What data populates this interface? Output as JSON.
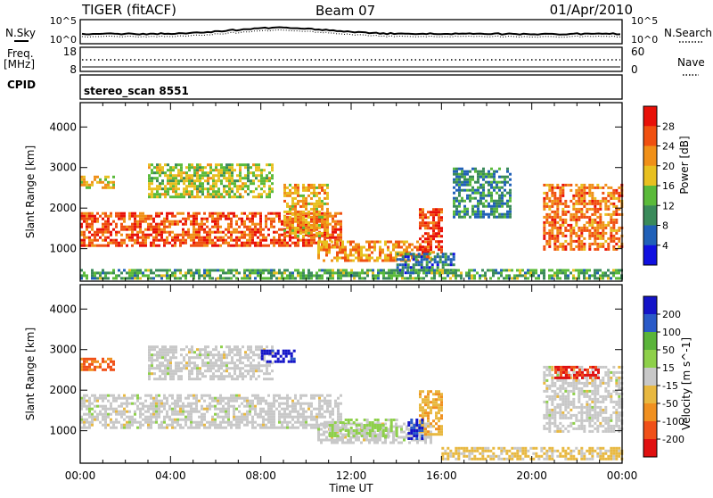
{
  "header": {
    "title": "TIGER (fitACF)",
    "beam": "Beam 07",
    "date": "01/Apr/2010"
  },
  "noise_panel": {
    "label": "N.Sky",
    "right_label": "N.Search",
    "ticks_left": [
      "10^5",
      "10^0"
    ],
    "ticks_right": [
      "10^5",
      "10^0"
    ]
  },
  "freq_panel": {
    "label_line1": "Freq.",
    "label_line2": "[MHz]",
    "right_label": "Nave",
    "ticks_left": [
      "18",
      "8"
    ],
    "ticks_right": [
      "60",
      "0"
    ]
  },
  "cpid_panel": {
    "label": "CPID",
    "text": "stereo_scan 8551"
  },
  "colors": {
    "power_scale": [
      "#1010e0",
      "#2060b8",
      "#3a8a5a",
      "#5aba3a",
      "#e8c020",
      "#f09018",
      "#f05010",
      "#e81008"
    ],
    "velocity_scale": [
      "#1414c8",
      "#2a5ac8",
      "#5ab43a",
      "#8ed04a",
      "#c8c8c8",
      "#e8b840",
      "#f09020",
      "#f05018",
      "#e01010"
    ]
  },
  "chart_data": [
    {
      "type": "heatmap",
      "title": "",
      "quantity": "Power",
      "xlabel": "",
      "ylabel": "Slant Range [km]",
      "x_tick_labels": [
        "00:00",
        "04:00",
        "08:00",
        "12:00",
        "16:00",
        "20:00",
        "00:00"
      ],
      "x_range_hours": [
        0,
        24
      ],
      "ylim": [
        200,
        4600
      ],
      "y_ticks": [
        1000,
        2000,
        3000,
        4000
      ],
      "colorbar_label": "Power [dB]",
      "colorbar_ticks": [
        "4",
        "8",
        "12",
        "16",
        "20",
        "24",
        "28"
      ],
      "colorbar_range": [
        0,
        32
      ],
      "echo_regions": [
        {
          "t_start": 0.0,
          "t_end": 11.5,
          "r_start": 1100,
          "r_end": 1900,
          "level": 26
        },
        {
          "t_start": 0.0,
          "t_end": 1.5,
          "r_start": 2500,
          "r_end": 2800,
          "level": 18
        },
        {
          "t_start": 3.0,
          "t_end": 8.5,
          "r_start": 2300,
          "r_end": 3100,
          "level": 16
        },
        {
          "t_start": 9.0,
          "t_end": 11.0,
          "r_start": 1300,
          "r_end": 2600,
          "level": 20
        },
        {
          "t_start": 10.5,
          "t_end": 15.5,
          "r_start": 700,
          "r_end": 1200,
          "level": 22
        },
        {
          "t_start": 15.0,
          "t_end": 16.0,
          "r_start": 900,
          "r_end": 2000,
          "level": 28
        },
        {
          "t_start": 14.0,
          "t_end": 16.5,
          "r_start": 400,
          "r_end": 900,
          "level": 8
        },
        {
          "t_start": 16.5,
          "t_end": 19.0,
          "r_start": 1800,
          "r_end": 3000,
          "level": 10
        },
        {
          "t_start": 20.5,
          "t_end": 24.0,
          "r_start": 1000,
          "r_end": 2600,
          "level": 24
        },
        {
          "t_start": 0.0,
          "t_end": 24.0,
          "r_start": 250,
          "r_end": 500,
          "level": 12
        }
      ]
    },
    {
      "type": "heatmap",
      "title": "",
      "quantity": "Velocity",
      "xlabel": "Time UT",
      "ylabel": "Slant Range [km]",
      "x_tick_labels": [
        "00:00",
        "04:00",
        "08:00",
        "12:00",
        "16:00",
        "20:00",
        "00:00"
      ],
      "x_range_hours": [
        0,
        24
      ],
      "ylim": [
        200,
        4600
      ],
      "y_ticks": [
        1000,
        2000,
        3000,
        4000
      ],
      "colorbar_label": "Velocity [m s^-1]",
      "colorbar_ticks": [
        "200",
        "100",
        "50",
        "15",
        "-15",
        "-50",
        "-100",
        "-200"
      ],
      "colorbar_range": [
        -250,
        250
      ],
      "echo_regions": [
        {
          "t_start": 0.0,
          "t_end": 11.5,
          "r_start": 1100,
          "r_end": 1900,
          "level": 0
        },
        {
          "t_start": 0.0,
          "t_end": 1.5,
          "r_start": 2500,
          "r_end": 2800,
          "level": -150
        },
        {
          "t_start": 3.0,
          "t_end": 8.5,
          "r_start": 2300,
          "r_end": 3100,
          "level": 0
        },
        {
          "t_start": 8.0,
          "t_end": 9.5,
          "r_start": 2700,
          "r_end": 3000,
          "level": 220
        },
        {
          "t_start": 10.5,
          "t_end": 15.5,
          "r_start": 700,
          "r_end": 1200,
          "level": 0
        },
        {
          "t_start": 11.0,
          "t_end": 14.0,
          "r_start": 900,
          "r_end": 1300,
          "level": 40
        },
        {
          "t_start": 15.0,
          "t_end": 16.0,
          "r_start": 900,
          "r_end": 2000,
          "level": -70
        },
        {
          "t_start": 14.5,
          "t_end": 15.2,
          "r_start": 800,
          "r_end": 1300,
          "level": 200
        },
        {
          "t_start": 16.0,
          "t_end": 24.0,
          "r_start": 300,
          "r_end": 600,
          "level": -40
        },
        {
          "t_start": 20.5,
          "t_end": 24.0,
          "r_start": 1000,
          "r_end": 2600,
          "level": 0
        },
        {
          "t_start": 21.0,
          "t_end": 23.0,
          "r_start": 2300,
          "r_end": 2600,
          "level": -200
        }
      ]
    }
  ]
}
